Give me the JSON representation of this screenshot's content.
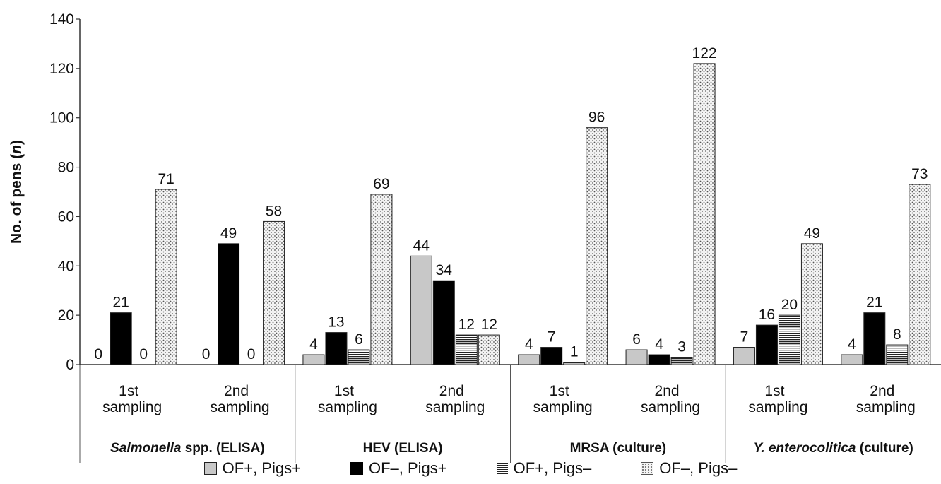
{
  "chart_data": {
    "type": "bar",
    "ylabel": "No. of pens (n)",
    "ylim": [
      0,
      140
    ],
    "yticks": [
      "0",
      "20",
      "40",
      "60",
      "80",
      "100",
      "120",
      "140"
    ],
    "grid": false,
    "legend_position": "bottom",
    "categories": [
      "1st sampling",
      "2nd sampling",
      "1st sampling",
      "2nd sampling",
      "1st sampling",
      "2nd sampling",
      "1st sampling",
      "2nd sampling"
    ],
    "groups": [
      {
        "label_parts": [
          {
            "text": "Salmonella",
            "italic": true
          },
          {
            "text": " spp. (ELISA)",
            "italic": false
          }
        ],
        "category_count": 2
      },
      {
        "label_parts": [
          {
            "text": "HEV (ELISA)",
            "italic": false
          }
        ],
        "category_count": 2
      },
      {
        "label_parts": [
          {
            "text": "MRSA (culture)",
            "italic": false
          }
        ],
        "category_count": 2
      },
      {
        "label_parts": [
          {
            "text": "Y. enterocolitica",
            "italic": true
          },
          {
            "text": " (culture)",
            "italic": false
          }
        ],
        "category_count": 2
      }
    ],
    "series": [
      {
        "name": "OF+, Pigs+",
        "pattern": "gray",
        "values": [
          0,
          0,
          4,
          44,
          4,
          6,
          7,
          4
        ]
      },
      {
        "name": "OF–, Pigs+",
        "pattern": "black",
        "values": [
          21,
          49,
          13,
          34,
          7,
          4,
          16,
          21
        ]
      },
      {
        "name": "OF+, Pigs–",
        "pattern": "horizontal-lines",
        "values": [
          0,
          0,
          6,
          12,
          1,
          3,
          20,
          8
        ]
      },
      {
        "name": "OF–, Pigs–",
        "pattern": "dots",
        "values": [
          71,
          58,
          69,
          12,
          96,
          122,
          49,
          73
        ]
      }
    ],
    "colors": {
      "gray": "#c8c8c8",
      "black": "#000000",
      "axis": "#333333",
      "text": "#111111"
    }
  }
}
